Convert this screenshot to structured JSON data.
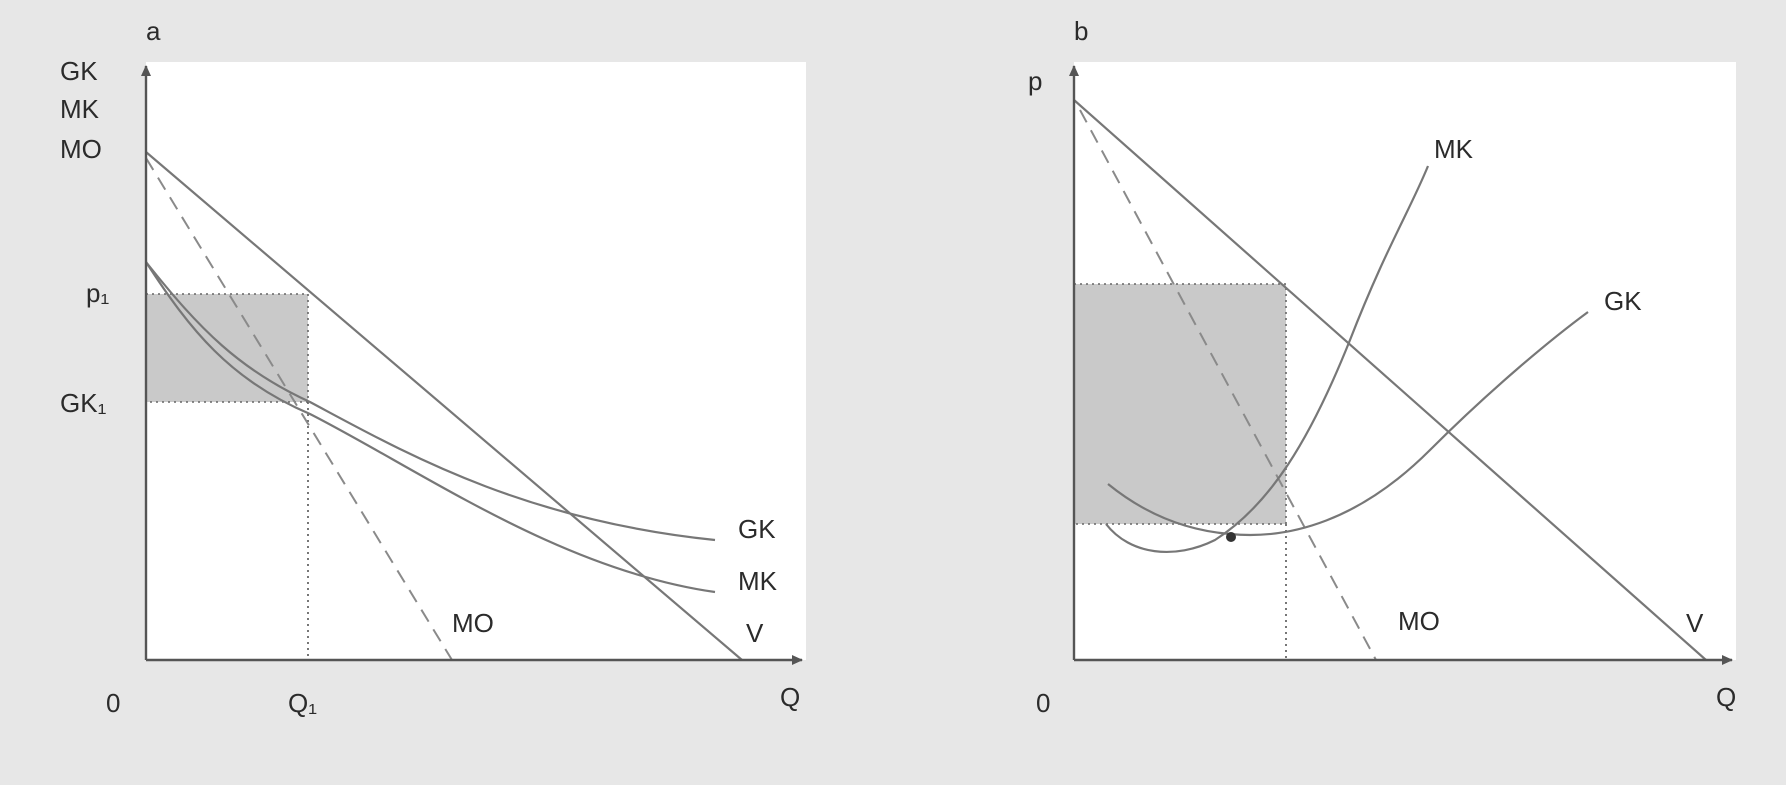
{
  "panel_a": {
    "panel_label": "a",
    "y_axis_labels": [
      "GK",
      "MK",
      "MO"
    ],
    "x_axis_label": "Q",
    "origin_label": "0",
    "tick_p": "p₁",
    "tick_gk": "GK₁",
    "tick_q": "Q₁",
    "curve_labels": {
      "gk": "GK",
      "mk": "MK",
      "mo": "MO",
      "v": "V"
    }
  },
  "panel_b": {
    "panel_label": "b",
    "y_axis_label": "p",
    "x_axis_label": "Q",
    "origin_label": "0",
    "curve_labels": {
      "mk": "MK",
      "gk": "GK",
      "mo": "MO",
      "v": "V"
    }
  }
}
